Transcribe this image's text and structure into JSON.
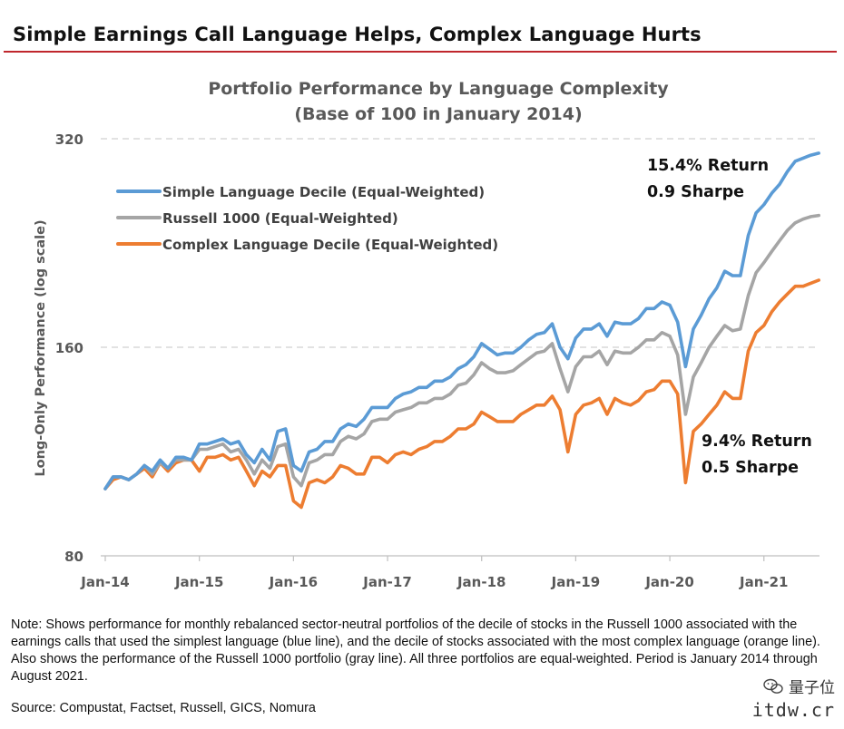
{
  "header": {
    "title": "Simple Earnings Call Language Helps, Complex Language Hurts"
  },
  "note": "Note: Shows performance for monthly rebalanced sector-neutral portfolios of the decile of stocks in the Russell 1000 associated with the earnings calls that used the simplest language (blue line), and the decile of stocks associated with the most complex language (orange line). Also shows the performance of the Russell 1000 portfolio (gray line). All three portfolios are equal-weighted. Period is January 2014 through August 2021.",
  "source": "Source: Compustat, Factset, Russell, GICS, Nomura",
  "watermark": {
    "top": "量子位",
    "bottom": "itdw.cr"
  },
  "chart_data": {
    "type": "line",
    "title": "Portfolio Performance by Language Complexity",
    "subtitle": "(Base of 100 in January 2014)",
    "xlabel": "",
    "ylabel": "Long-Only Performance (log scale)",
    "y_scale": "log",
    "ylim": [
      80,
      320
    ],
    "yticks": [
      80,
      160,
      320
    ],
    "xticks": [
      "Jan-14",
      "Jan-15",
      "Jan-16",
      "Jan-17",
      "Jan-18",
      "Jan-19",
      "Jan-20",
      "Jan-21"
    ],
    "grid": "horizontal dashed",
    "legend_position": "top-left",
    "x": [
      "2014-01",
      "2014-02",
      "2014-03",
      "2014-04",
      "2014-05",
      "2014-06",
      "2014-07",
      "2014-08",
      "2014-09",
      "2014-10",
      "2014-11",
      "2014-12",
      "2015-01",
      "2015-02",
      "2015-03",
      "2015-04",
      "2015-05",
      "2015-06",
      "2015-07",
      "2015-08",
      "2015-09",
      "2015-10",
      "2015-11",
      "2015-12",
      "2016-01",
      "2016-02",
      "2016-03",
      "2016-04",
      "2016-05",
      "2016-06",
      "2016-07",
      "2016-08",
      "2016-09",
      "2016-10",
      "2016-11",
      "2016-12",
      "2017-01",
      "2017-02",
      "2017-03",
      "2017-04",
      "2017-05",
      "2017-06",
      "2017-07",
      "2017-08",
      "2017-09",
      "2017-10",
      "2017-11",
      "2017-12",
      "2018-01",
      "2018-02",
      "2018-03",
      "2018-04",
      "2018-05",
      "2018-06",
      "2018-07",
      "2018-08",
      "2018-09",
      "2018-10",
      "2018-11",
      "2018-12",
      "2019-01",
      "2019-02",
      "2019-03",
      "2019-04",
      "2019-05",
      "2019-06",
      "2019-07",
      "2019-08",
      "2019-09",
      "2019-10",
      "2019-11",
      "2019-12",
      "2020-01",
      "2020-02",
      "2020-03",
      "2020-04",
      "2020-05",
      "2020-06",
      "2020-07",
      "2020-08",
      "2020-09",
      "2020-10",
      "2020-11",
      "2020-12",
      "2021-01",
      "2021-02",
      "2021-03",
      "2021-04",
      "2021-05",
      "2021-06",
      "2021-07",
      "2021-08"
    ],
    "series": [
      {
        "name": "Simple Language Decile (Equal-Weighted)",
        "color": "#5b9bd5",
        "values": [
          100,
          104,
          104,
          103,
          105,
          108,
          106,
          110,
          107,
          111,
          111,
          110,
          116,
          116,
          117,
          118,
          116,
          117,
          112,
          109,
          114,
          110,
          121,
          122,
          108,
          106,
          113,
          114,
          117,
          117,
          122,
          124,
          123,
          126,
          131,
          131,
          131,
          135,
          137,
          138,
          140,
          140,
          143,
          143,
          145,
          149,
          151,
          155,
          162,
          159,
          156,
          157,
          157,
          160,
          164,
          167,
          168,
          173,
          160,
          154,
          165,
          170,
          170,
          173,
          166,
          174,
          173,
          173,
          176,
          182,
          182,
          186,
          184,
          174,
          150,
          170,
          178,
          188,
          195,
          206,
          203,
          203,
          232,
          250,
          257,
          267,
          275,
          287,
          297,
          300,
          303,
          305
        ]
      },
      {
        "name": "Russell 1000 (Equal-Weighted)",
        "color": "#a5a5a5",
        "values": [
          100,
          104,
          104,
          103,
          105,
          108,
          105,
          109,
          107,
          110,
          110,
          110,
          114,
          114,
          115,
          116,
          113,
          114,
          110,
          105,
          110,
          107,
          115,
          116,
          104,
          101,
          109,
          110,
          112,
          112,
          117,
          119,
          118,
          120,
          125,
          126,
          126,
          129,
          130,
          131,
          133,
          133,
          135,
          135,
          137,
          141,
          142,
          146,
          152,
          149,
          147,
          147,
          148,
          151,
          154,
          157,
          158,
          162,
          149,
          138,
          150,
          155,
          155,
          158,
          151,
          158,
          157,
          157,
          160,
          164,
          164,
          168,
          166,
          156,
          128,
          145,
          152,
          160,
          166,
          172,
          169,
          170,
          190,
          205,
          212,
          220,
          228,
          236,
          242,
          245,
          247,
          248
        ]
      },
      {
        "name": "Complex Language Decile (Equal-Weighted)",
        "color": "#ed7d31",
        "values": [
          100,
          103,
          104,
          103,
          105,
          107,
          104,
          109,
          106,
          109,
          110,
          110,
          106,
          111,
          111,
          112,
          110,
          111,
          106,
          101,
          106,
          104,
          108,
          108,
          96,
          94,
          102,
          103,
          102,
          104,
          108,
          107,
          105,
          105,
          111,
          111,
          109,
          112,
          113,
          112,
          114,
          115,
          117,
          117,
          119,
          122,
          122,
          124,
          129,
          127,
          125,
          125,
          125,
          128,
          130,
          132,
          132,
          136,
          130,
          113,
          128,
          132,
          133,
          135,
          128,
          135,
          133,
          132,
          134,
          138,
          139,
          143,
          143,
          137,
          102,
          121,
          124,
          128,
          132,
          138,
          135,
          135,
          158,
          168,
          172,
          180,
          186,
          191,
          196,
          196,
          198,
          200
        ]
      }
    ],
    "annotations": [
      {
        "text": [
          "15.4% Return",
          "0.9 Sharpe"
        ]
      },
      {
        "text": [
          "9.4% Return",
          "0.5 Sharpe"
        ]
      }
    ]
  }
}
